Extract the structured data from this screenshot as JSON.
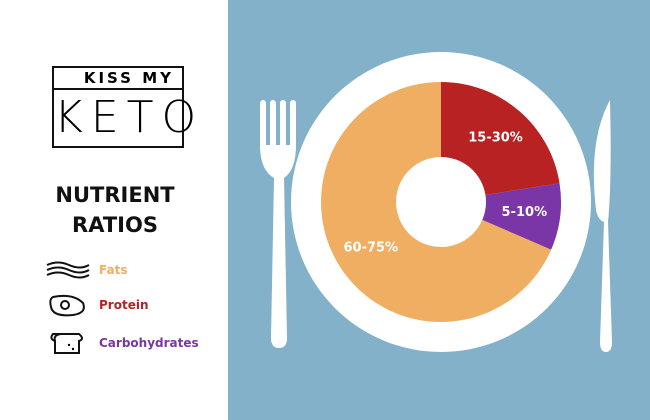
{
  "logo": {
    "top": "KISS MY",
    "bottom": "KETO"
  },
  "chart_data": {
    "type": "pie",
    "title": "NUTRIENT RATIOS",
    "categories": [
      "Fats",
      "Protein",
      "Carbohydrates"
    ],
    "values": [
      68.5,
      22.5,
      9
    ],
    "value_labels": [
      "60-75%",
      "15-30%",
      "5-10%"
    ],
    "colors": [
      "#efae62",
      "#b82222",
      "#7a35a6"
    ]
  }
}
